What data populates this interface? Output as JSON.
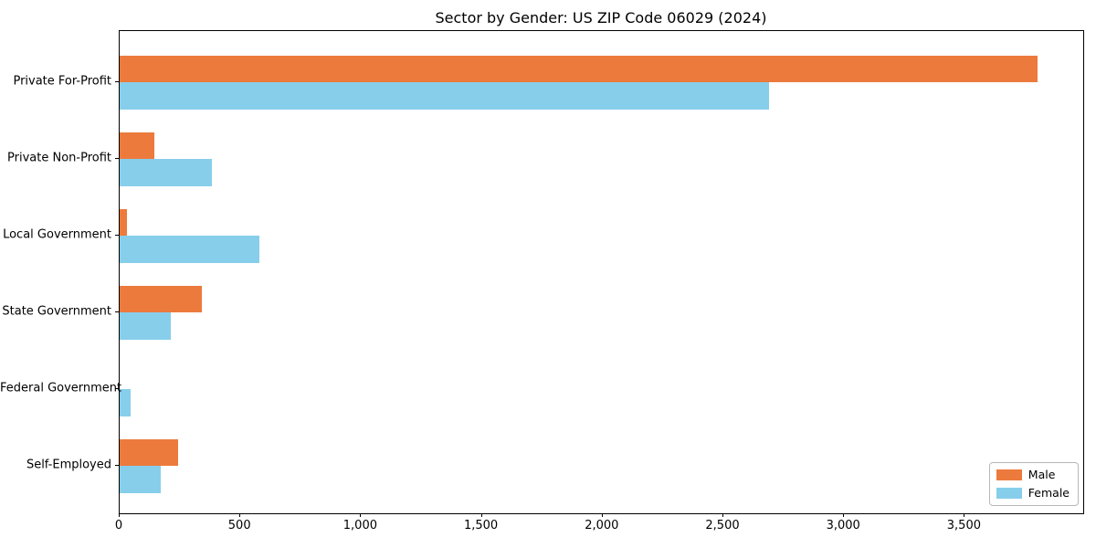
{
  "title": "Sector by Gender: US ZIP Code 06029 (2024)",
  "chart_data": {
    "type": "bar",
    "orientation": "horizontal",
    "title": "Sector by Gender: US ZIP Code 06029 (2024)",
    "xlabel": "",
    "ylabel": "",
    "categories": [
      "Private For-Profit",
      "Private Non-Profit",
      "Local Government",
      "State Government",
      "Federal Government",
      "Self-Employed"
    ],
    "series": [
      {
        "name": "Male",
        "color": "#ec7a3d",
        "values": [
          3800,
          145,
          30,
          340,
          0,
          240
        ]
      },
      {
        "name": "Female",
        "color": "#87ceeb",
        "values": [
          2690,
          380,
          580,
          210,
          45,
          170
        ]
      }
    ],
    "xlim": [
      0,
      3990
    ],
    "xticks": [
      0,
      500,
      1000,
      1500,
      2000,
      2500,
      3000,
      3500
    ],
    "xtick_labels": [
      "0",
      "500",
      "1,000",
      "1,500",
      "2,000",
      "2,500",
      "3,000",
      "3,500"
    ],
    "grid": false,
    "legend_position": "lower right"
  },
  "legend": {
    "items": [
      {
        "label": "Male",
        "color": "#ec7a3d"
      },
      {
        "label": "Female",
        "color": "#87ceeb"
      }
    ]
  }
}
